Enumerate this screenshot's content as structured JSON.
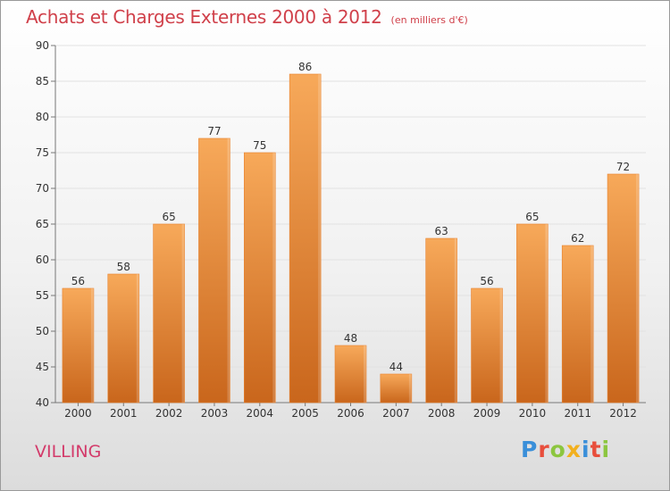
{
  "chart_data": {
    "type": "bar",
    "title": "Achats et Charges Externes 2000 à 2012",
    "subtitle": "(en milliers d'€)",
    "categories": [
      "2000",
      "2001",
      "2002",
      "2003",
      "2004",
      "2005",
      "2006",
      "2007",
      "2008",
      "2009",
      "2010",
      "2011",
      "2012"
    ],
    "values": [
      56,
      58,
      65,
      77,
      75,
      86,
      48,
      44,
      63,
      56,
      65,
      62,
      72
    ],
    "ylim": [
      40,
      90
    ],
    "yticks": [
      40,
      45,
      50,
      55,
      60,
      65,
      70,
      75,
      80,
      85,
      90
    ],
    "xlabel": "",
    "ylabel": "",
    "grid": true,
    "bar_color": "#e8822e",
    "bar_color_light": "#f7a95a",
    "bar_color_dark": "#c9661c"
  },
  "place_name": "VILLING",
  "brand": {
    "letters": [
      {
        "char": "P",
        "color": "#3a8fd9"
      },
      {
        "char": "r",
        "color": "#e84e3c"
      },
      {
        "char": "o",
        "color": "#8cc63f"
      },
      {
        "char": "x",
        "color": "#f2b01e"
      },
      {
        "char": "i",
        "color": "#3a8fd9"
      },
      {
        "char": "t",
        "color": "#e84e3c"
      },
      {
        "char": "i",
        "color": "#8cc63f"
      }
    ]
  }
}
